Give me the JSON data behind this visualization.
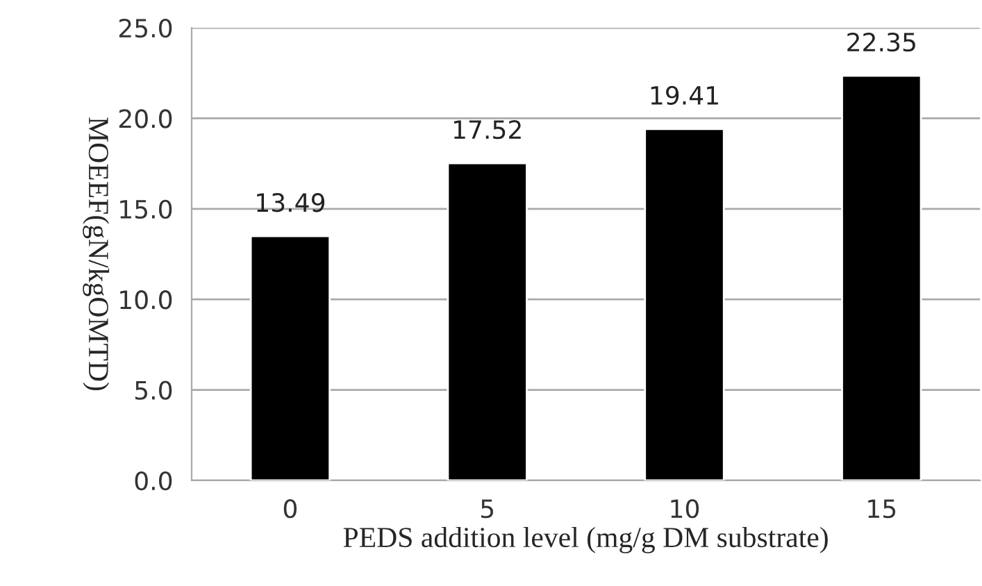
{
  "chart_data": {
    "type": "bar",
    "xlabel": "PEDS addition level (mg/g DM substrate)",
    "ylabel": "MOEEF(gN/kgOMTD)",
    "categories": [
      "0",
      "5",
      "10",
      "15"
    ],
    "values": [
      13.49,
      17.52,
      19.41,
      22.35
    ],
    "color": "#000000",
    "ylim": [
      0,
      25
    ],
    "yticks": [
      {
        "value": 0,
        "label": "0.0"
      },
      {
        "value": 5,
        "label": "5.0"
      },
      {
        "value": 10,
        "label": "10.0"
      },
      {
        "value": 15,
        "label": "15.0"
      },
      {
        "value": 20,
        "label": "20.0"
      },
      {
        "value": 25,
        "label": "25.0"
      }
    ],
    "grid": "y",
    "data_labels": true
  }
}
